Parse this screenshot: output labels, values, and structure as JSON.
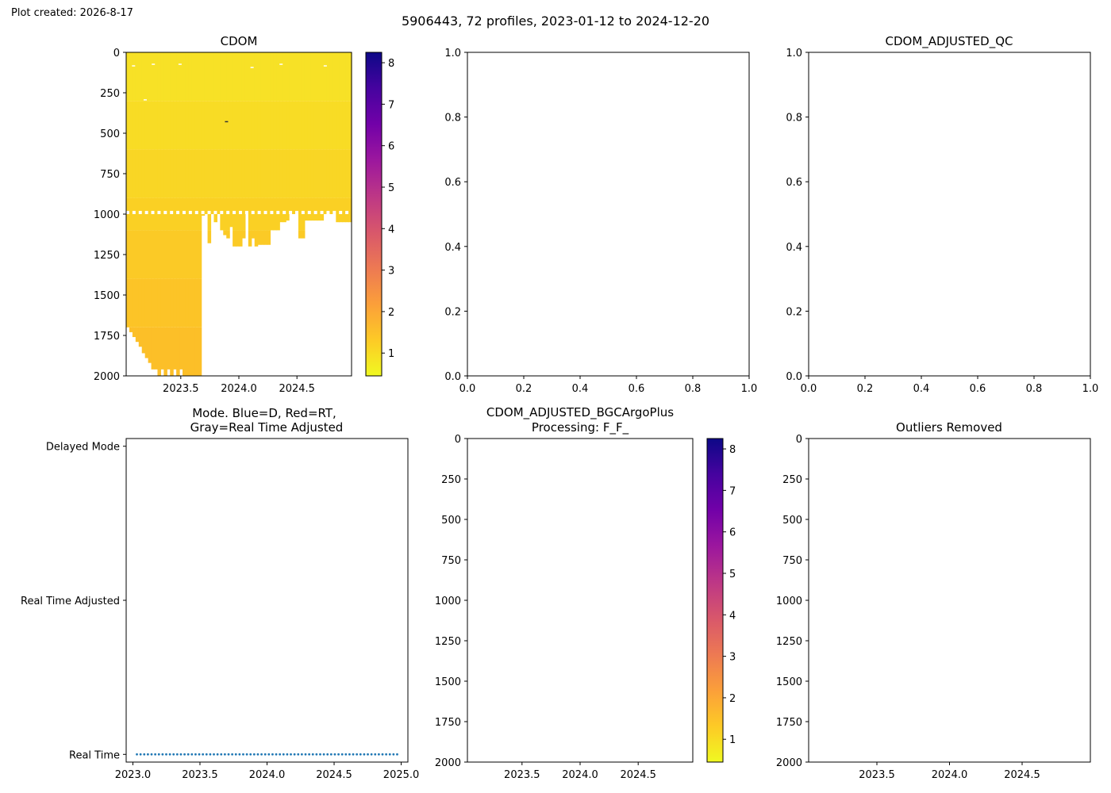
{
  "figure": {
    "created_note": "Plot created: 2026-8-17",
    "suptitle": "5906443, 72 profiles, 2023-01-12 to 2024-12-20"
  },
  "colormap": {
    "name": "plasma_r",
    "stops": [
      "#f0f921",
      "#fdca26",
      "#fb9f3a",
      "#ed7953",
      "#d8576b",
      "#bd3786",
      "#9c179e",
      "#7201a8",
      "#46039f",
      "#0d0887"
    ]
  },
  "chart_data": [
    {
      "id": "cdom",
      "type": "heatmap",
      "title": "CDOM",
      "xlabel": "",
      "ylabel": "",
      "xlim": [
        2023.03,
        2024.97
      ],
      "ylim": [
        2000,
        0
      ],
      "y_inverted": true,
      "xticks": [
        2023.5,
        2024.0,
        2024.5
      ],
      "xtick_labels": [
        "2023.5",
        "2024.0",
        "2024.5"
      ],
      "yticks": [
        0,
        250,
        500,
        750,
        1000,
        1250,
        1500,
        1750,
        2000
      ],
      "ytick_labels": [
        "0",
        "250",
        "500",
        "750",
        "1000",
        "1250",
        "1500",
        "1750",
        "2000"
      ],
      "colorbar": {
        "vmin": 0.45,
        "vmax": 8.25,
        "ticks": [
          1,
          2,
          3,
          4,
          5,
          6,
          7,
          8
        ],
        "tick_labels": [
          "1",
          "2",
          "3",
          "4",
          "5",
          "6",
          "7",
          "8"
        ]
      },
      "profiles_start": "2023-01-12",
      "profiles_end": "2024-12-20",
      "profile_count": 72,
      "approx_value_range": [
        0.6,
        1.3
      ],
      "max_depth_by_profile": [
        1700,
        1730,
        1760,
        1790,
        1820,
        1860,
        1890,
        1920,
        1960,
        1960,
        2000,
        1960,
        2000,
        1960,
        2000,
        1960,
        2000,
        1960,
        2000,
        2000,
        2000,
        2000,
        2000,
        2000,
        1010,
        1000,
        1180,
        1000,
        1050,
        1000,
        1100,
        1130,
        1150,
        1080,
        1200,
        1200,
        1200,
        1150,
        1000,
        1200,
        1150,
        1200,
        1190,
        1190,
        1190,
        1190,
        1100,
        1100,
        1100,
        1050,
        1050,
        1040,
        1000,
        1000,
        1000,
        1150,
        1150,
        1040,
        1040,
        1040,
        1040,
        1040,
        1040,
        1000,
        1000,
        1000,
        1000,
        1050,
        1050,
        1050,
        1050,
        1050
      ]
    },
    {
      "id": "blank_axes",
      "type": "scatter",
      "title": "",
      "xlim": [
        0,
        1
      ],
      "ylim": [
        0,
        1
      ],
      "xticks": [
        0,
        0.2,
        0.4,
        0.6,
        0.8,
        1.0
      ],
      "xtick_labels": [
        "0.0",
        "0.2",
        "0.4",
        "0.6",
        "0.8",
        "1.0"
      ],
      "yticks": [
        0,
        0.2,
        0.4,
        0.6,
        0.8,
        1.0
      ],
      "ytick_labels": [
        "0.0",
        "0.2",
        "0.4",
        "0.6",
        "0.8",
        "1.0"
      ],
      "series": []
    },
    {
      "id": "cdom_adjusted_qc",
      "type": "scatter",
      "title": "CDOM_ADJUSTED_QC",
      "xlim": [
        0,
        1
      ],
      "ylim": [
        0,
        1
      ],
      "xticks": [
        0,
        0.2,
        0.4,
        0.6,
        0.8,
        1.0
      ],
      "xtick_labels": [
        "0.0",
        "0.2",
        "0.4",
        "0.6",
        "0.8",
        "1.0"
      ],
      "yticks": [
        0,
        0.2,
        0.4,
        0.6,
        0.8,
        1.0
      ],
      "ytick_labels": [
        "0.0",
        "0.2",
        "0.4",
        "0.6",
        "0.8",
        "1.0"
      ],
      "series": []
    },
    {
      "id": "mode",
      "type": "scatter",
      "title": "Mode. Blue=D, Red=RT,",
      "title_line2": "Gray=Real Time Adjusted",
      "xlim": [
        2022.95,
        2025.05
      ],
      "ylim": [
        -0.05,
        2.05
      ],
      "xticks": [
        2023.0,
        2023.5,
        2024.0,
        2024.5,
        2025.0
      ],
      "xtick_labels": [
        "2023.0",
        "2023.5",
        "2024.0",
        "2024.5",
        "2025.0"
      ],
      "yticks": [
        0,
        1,
        2
      ],
      "ytick_labels": [
        "Real Time",
        "Real Time Adjusted",
        "Delayed Mode"
      ],
      "series": [
        {
          "color": "#1f77b4",
          "x_range": [
            2023.03,
            2024.97
          ],
          "count": 72,
          "y": 0
        }
      ]
    },
    {
      "id": "cdom_adjusted_bgc",
      "type": "heatmap",
      "title": "CDOM_ADJUSTED_BGCArgoPlus",
      "title_line2": "Processing: F_F_",
      "xlim": [
        2023.03,
        2024.97
      ],
      "ylim": [
        2000,
        0
      ],
      "y_inverted": true,
      "xticks": [
        2023.5,
        2024.0,
        2024.5
      ],
      "xtick_labels": [
        "2023.5",
        "2024.0",
        "2024.5"
      ],
      "yticks": [
        0,
        250,
        500,
        750,
        1000,
        1250,
        1500,
        1750,
        2000
      ],
      "ytick_labels": [
        "0",
        "250",
        "500",
        "750",
        "1000",
        "1250",
        "1500",
        "1750",
        "2000"
      ],
      "colorbar": {
        "vmin": 0.45,
        "vmax": 8.25,
        "ticks": [
          1,
          2,
          3,
          4,
          5,
          6,
          7,
          8
        ],
        "tick_labels": [
          "1",
          "2",
          "3",
          "4",
          "5",
          "6",
          "7",
          "8"
        ]
      },
      "values": []
    },
    {
      "id": "outliers_removed",
      "type": "heatmap",
      "title": "Outliers Removed",
      "xlim": [
        2023.03,
        2024.97
      ],
      "ylim": [
        2000,
        0
      ],
      "y_inverted": true,
      "xticks": [
        2023.5,
        2024.0,
        2024.5
      ],
      "xtick_labels": [
        "2023.5",
        "2024.0",
        "2024.5"
      ],
      "yticks": [
        0,
        250,
        500,
        750,
        1000,
        1250,
        1500,
        1750,
        2000
      ],
      "ytick_labels": [
        "0",
        "250",
        "500",
        "750",
        "1000",
        "1250",
        "1500",
        "1750",
        "2000"
      ],
      "values": []
    }
  ]
}
